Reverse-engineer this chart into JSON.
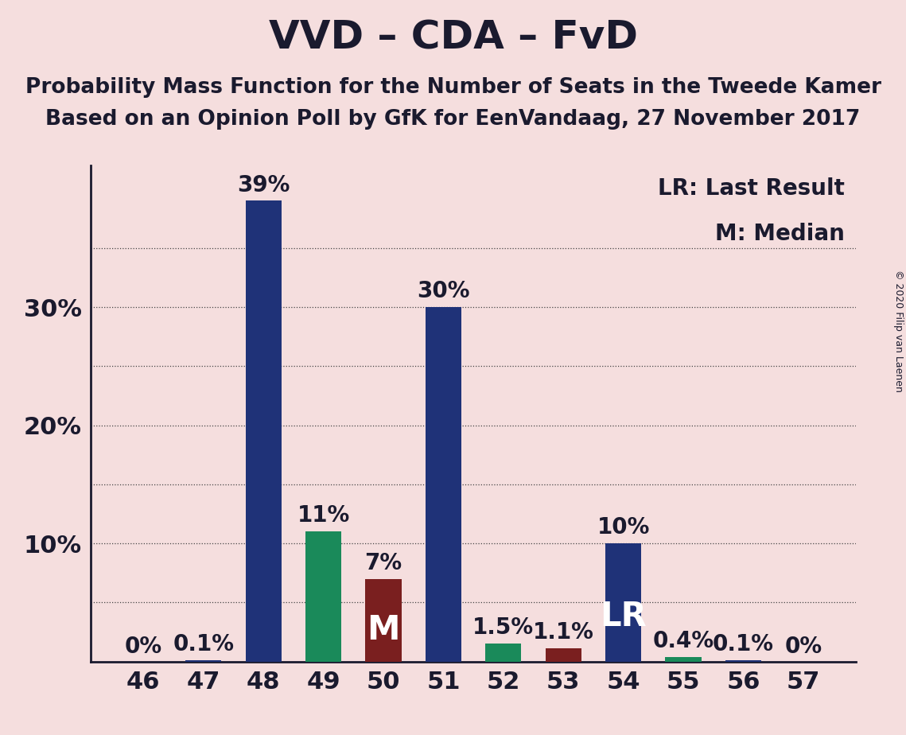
{
  "title": "VVD – CDA – FvD",
  "subtitle1": "Probability Mass Function for the Number of Seats in the Tweede Kamer",
  "subtitle2": "Based on an Opinion Poll by GfK for EenVandaag, 27 November 2017",
  "copyright": "© 2020 Filip van Laenen",
  "legend_lr": "LR: Last Result",
  "legend_m": "M: Median",
  "background_color": "#f5dede",
  "categories": [
    46,
    47,
    48,
    49,
    50,
    51,
    52,
    53,
    54,
    55,
    56,
    57
  ],
  "values": [
    0,
    0.1,
    39,
    11,
    7,
    30,
    1.5,
    1.1,
    10,
    0.4,
    0.1,
    0
  ],
  "labels": [
    "0%",
    "0.1%",
    "39%",
    "11%",
    "7%",
    "30%",
    "1.5%",
    "1.1%",
    "10%",
    "0.4%",
    "0.1%",
    "0%"
  ],
  "bar_colors": [
    "#1f3278",
    "#1f3278",
    "#1f3278",
    "#1a8a5a",
    "#7a1f1f",
    "#1f3278",
    "#1a8a5a",
    "#7a1f1f",
    "#1f3278",
    "#1a8a5a",
    "#1f3278",
    "#1f3278"
  ],
  "special_labels": {
    "50": "M",
    "54": "LR"
  },
  "special_label_color": "#ffffff",
  "ylim": [
    0,
    42
  ],
  "ytick_positions": [
    10,
    20,
    30
  ],
  "ytick_labels": [
    "10%",
    "20%",
    "30%"
  ],
  "grid_yticks": [
    5,
    10,
    15,
    20,
    25,
    30,
    35
  ],
  "axis_color": "#1a1a2e",
  "title_fontsize": 36,
  "subtitle_fontsize": 19,
  "tick_fontsize": 22,
  "bar_label_fontsize": 20,
  "special_label_fontsize": 30,
  "legend_fontsize": 20,
  "copyright_fontsize": 9,
  "bar_width": 0.6
}
